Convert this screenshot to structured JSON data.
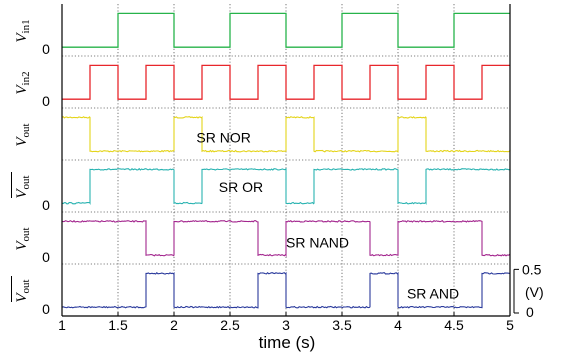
{
  "chart_data": {
    "type": "line",
    "xlabel": "time (s)",
    "xlim": [
      1,
      5
    ],
    "xticks": [
      "1",
      "1.5",
      "2",
      "2.5",
      "3",
      "3.5",
      "4",
      "4.5",
      "5"
    ],
    "grid": true,
    "scale_bar": {
      "top": "0.5",
      "bottom": "0",
      "unit": "(V)"
    },
    "panels": [
      {
        "id": "vin1",
        "label_main": "V",
        "label_sub": "in1",
        "overline": false,
        "zero": "0",
        "color": "#27b34a",
        "annotation": "",
        "noise": 0,
        "low": 0.0,
        "high": 0.5,
        "transitions": [
          [
            1.0,
            0
          ],
          [
            1.5,
            1
          ],
          [
            2.0,
            0
          ],
          [
            2.5,
            1
          ],
          [
            3.0,
            0
          ],
          [
            3.5,
            1
          ],
          [
            4.0,
            0
          ],
          [
            4.5,
            1
          ],
          [
            5.0,
            1
          ]
        ]
      },
      {
        "id": "vin2",
        "label_main": "V",
        "label_sub": "in2",
        "overline": false,
        "zero": "0",
        "color": "#e8262b",
        "annotation": "",
        "noise": 0,
        "low": 0.0,
        "high": 0.5,
        "transitions": [
          [
            1.0,
            0
          ],
          [
            1.25,
            1
          ],
          [
            1.5,
            0
          ],
          [
            1.75,
            1
          ],
          [
            2.0,
            0
          ],
          [
            2.25,
            1
          ],
          [
            2.5,
            0
          ],
          [
            2.75,
            1
          ],
          [
            3.0,
            0
          ],
          [
            3.25,
            1
          ],
          [
            3.5,
            0
          ],
          [
            3.75,
            1
          ],
          [
            4.0,
            0
          ],
          [
            4.25,
            1
          ],
          [
            4.5,
            0
          ],
          [
            4.75,
            1
          ],
          [
            5.0,
            1
          ]
        ]
      },
      {
        "id": "nor",
        "label_main": "V",
        "label_sub": "out",
        "overline": false,
        "zero": "",
        "color": "#e4d41a",
        "annotation": "SR NOR",
        "noise": 0.02,
        "low": 0.0,
        "high": 0.5,
        "transitions": [
          [
            1.0,
            1
          ],
          [
            1.25,
            0
          ],
          [
            2.0,
            1
          ],
          [
            2.25,
            0
          ],
          [
            3.0,
            1
          ],
          [
            3.25,
            0
          ],
          [
            4.0,
            1
          ],
          [
            4.25,
            0
          ],
          [
            5.0,
            0
          ]
        ]
      },
      {
        "id": "or",
        "label_main": "V",
        "label_sub": "out",
        "overline": true,
        "zero": "0",
        "color": "#29b3b1",
        "annotation": "SR OR",
        "noise": 0.02,
        "low": 0.0,
        "high": 0.5,
        "transitions": [
          [
            1.0,
            0
          ],
          [
            1.25,
            1
          ],
          [
            2.0,
            0
          ],
          [
            2.25,
            1
          ],
          [
            3.0,
            0
          ],
          [
            3.25,
            1
          ],
          [
            4.0,
            0
          ],
          [
            4.25,
            1
          ],
          [
            5.0,
            1
          ]
        ]
      },
      {
        "id": "nand",
        "label_main": "V",
        "label_sub": "out",
        "overline": false,
        "zero": "0",
        "color": "#a3268e",
        "annotation": "SR NAND",
        "noise": 0.02,
        "low": 0.0,
        "high": 0.5,
        "transitions": [
          [
            1.0,
            1
          ],
          [
            1.75,
            0
          ],
          [
            2.0,
            1
          ],
          [
            2.75,
            0
          ],
          [
            3.0,
            1
          ],
          [
            3.75,
            0
          ],
          [
            4.0,
            1
          ],
          [
            4.75,
            0
          ],
          [
            5.0,
            0
          ]
        ]
      },
      {
        "id": "and",
        "label_main": "V",
        "label_sub": "out",
        "overline": true,
        "zero": "0",
        "color": "#2a3a9c",
        "annotation": "SR AND",
        "noise": 0.02,
        "low": 0.0,
        "high": 0.5,
        "transitions": [
          [
            1.0,
            0
          ],
          [
            1.75,
            1
          ],
          [
            2.0,
            0
          ],
          [
            2.75,
            1
          ],
          [
            3.0,
            0
          ],
          [
            3.75,
            1
          ],
          [
            4.0,
            0
          ],
          [
            4.75,
            1
          ],
          [
            5.0,
            1
          ]
        ]
      }
    ]
  }
}
